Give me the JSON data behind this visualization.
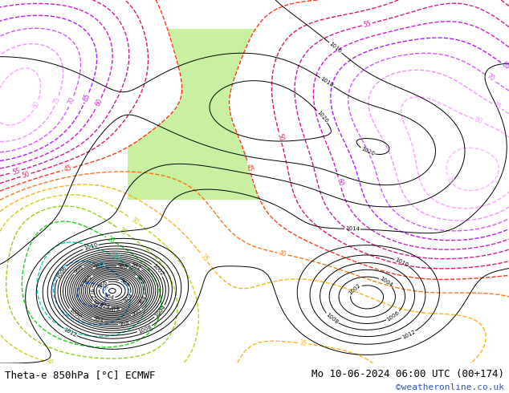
{
  "title_left": "Theta-e 850hPa [°C] ECMWF",
  "title_right": "Mo 10-06-2024 06:00 UTC (00+174)",
  "copyright": "©weatheronline.co.uk",
  "bg_color": "#ffffff",
  "fig_width": 6.34,
  "fig_height": 4.9,
  "dpi": 100,
  "bottom_bar_height": 0.075,
  "map_bg_color": "#f0f0f0",
  "green_fill_color": "#c8f0a0",
  "font_size_bottom": 9,
  "font_size_copyright": 8,
  "theta_line_colors": {
    "-10": "#6600cc",
    "-5": "#6600cc",
    "0": "#0000ff",
    "5": "#0066ff",
    "10": "#00aaff",
    "15": "#00ccaa",
    "20": "#00cc00",
    "25": "#88cc00",
    "30": "#cccc00",
    "35": "#ffaa00",
    "40": "#ff6600",
    "45": "#ff2200",
    "50": "#dd0044",
    "55": "#cc0088",
    "60": "#cc00cc",
    "65": "#aa00ff",
    "70": "#cc44ff",
    "75": "#ee88ff",
    "80": "#ff99ff",
    "85": "#ffaaff"
  }
}
